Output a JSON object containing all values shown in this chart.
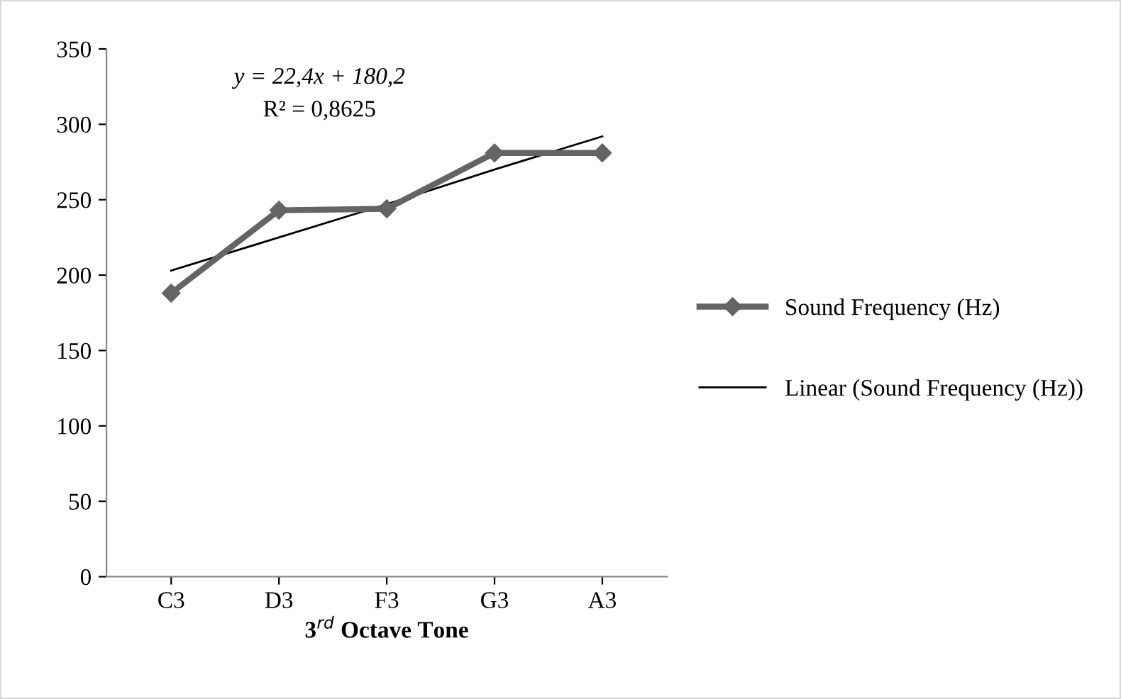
{
  "chart_data": {
    "type": "line",
    "categories": [
      "C3",
      "D3",
      "F3",
      "G3",
      "A3"
    ],
    "series": [
      {
        "name": "Sound Frequency (Hz)",
        "color": "#646464",
        "values": [
          188,
          243,
          244,
          281,
          281
        ],
        "marker": "diamond",
        "line_style": "solid"
      },
      {
        "name": "Linear (Sound Frequency (Hz))",
        "type": "line",
        "color": "#000000",
        "values": [
          203,
          225,
          247,
          270,
          292
        ],
        "marker": "none",
        "line_style": "solid"
      }
    ],
    "xlabel": "3$^{rd}$ Octave Tone",
    "ylim": [
      0,
      350
    ],
    "yticks": [
      0,
      50,
      100,
      150,
      200,
      250,
      300,
      350
    ],
    "annotations": [
      "y = 22,4x + 180,2",
      "R² = 0,8625"
    ],
    "grid": false,
    "legend": "right"
  }
}
